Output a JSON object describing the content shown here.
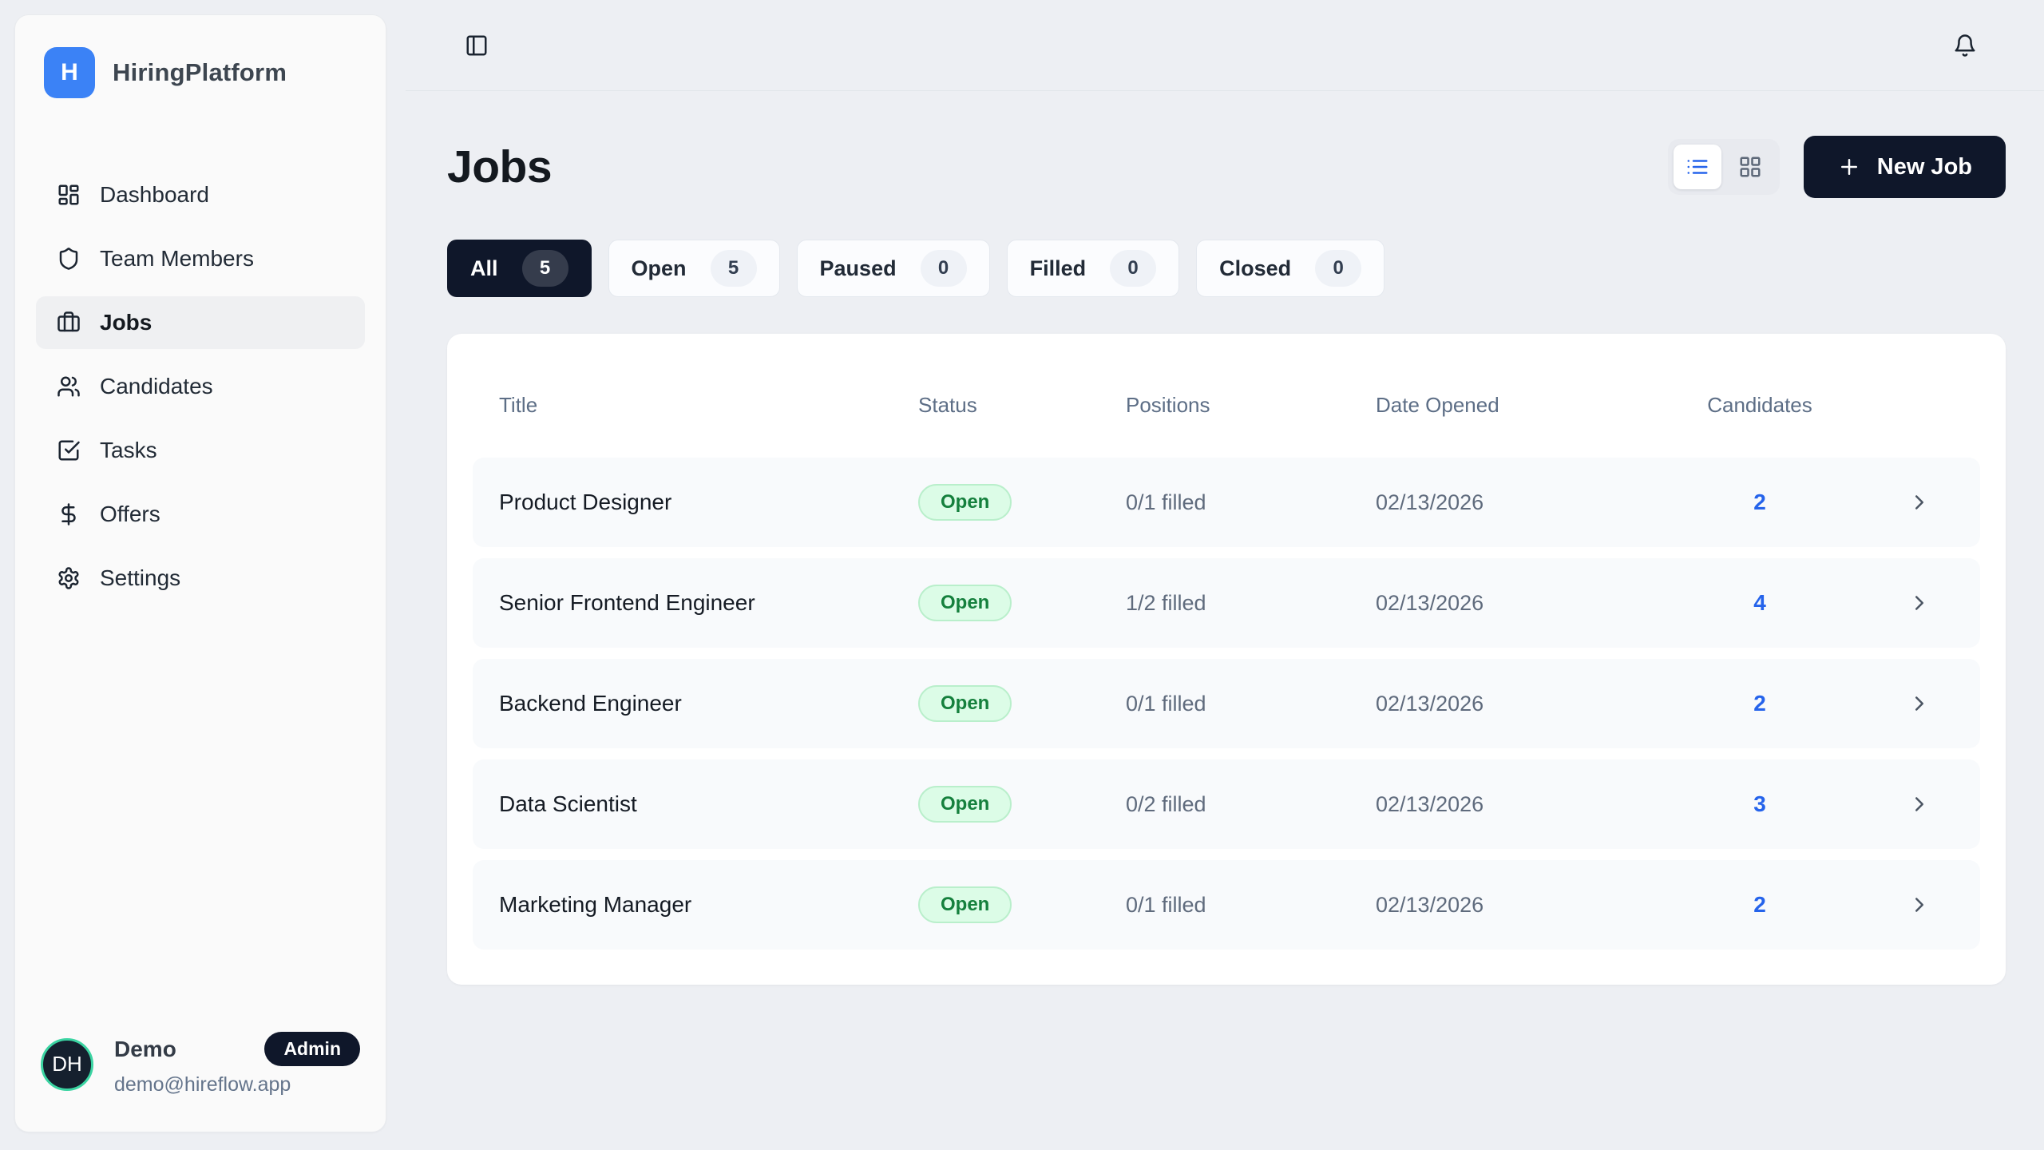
{
  "brand": {
    "initial": "H",
    "name": "HiringPlatform"
  },
  "sidebar": {
    "items": [
      {
        "label": "Dashboard",
        "icon": "layout-dashboard",
        "active": false
      },
      {
        "label": "Team Members",
        "icon": "shield",
        "active": false
      },
      {
        "label": "Jobs",
        "icon": "briefcase",
        "active": true
      },
      {
        "label": "Candidates",
        "icon": "users",
        "active": false
      },
      {
        "label": "Tasks",
        "icon": "check-square",
        "active": false
      },
      {
        "label": "Offers",
        "icon": "dollar-sign",
        "active": false
      },
      {
        "label": "Settings",
        "icon": "settings",
        "active": false
      }
    ]
  },
  "user": {
    "initials": "DH",
    "name": "Demo",
    "role": "Admin",
    "email": "demo@hireflow.app"
  },
  "page": {
    "title": "Jobs"
  },
  "actions": {
    "new_job_label": "New Job"
  },
  "filters": [
    {
      "label": "All",
      "count": "5",
      "active": true
    },
    {
      "label": "Open",
      "count": "5",
      "active": false
    },
    {
      "label": "Paused",
      "count": "0",
      "active": false
    },
    {
      "label": "Filled",
      "count": "0",
      "active": false
    },
    {
      "label": "Closed",
      "count": "0",
      "active": false
    }
  ],
  "table": {
    "columns": [
      "Title",
      "Status",
      "Positions",
      "Date Opened",
      "Candidates"
    ],
    "rows": [
      {
        "title": "Product Designer",
        "status": "Open",
        "positions": "0/1 filled",
        "date_opened": "02/13/2026",
        "candidates": "2"
      },
      {
        "title": "Senior Frontend Engineer",
        "status": "Open",
        "positions": "1/2 filled",
        "date_opened": "02/13/2026",
        "candidates": "4"
      },
      {
        "title": "Backend Engineer",
        "status": "Open",
        "positions": "0/1 filled",
        "date_opened": "02/13/2026",
        "candidates": "2"
      },
      {
        "title": "Data Scientist",
        "status": "Open",
        "positions": "0/2 filled",
        "date_opened": "02/13/2026",
        "candidates": "3"
      },
      {
        "title": "Marketing Manager",
        "status": "Open",
        "positions": "0/1 filled",
        "date_opened": "02/13/2026",
        "candidates": "2"
      }
    ]
  },
  "colors": {
    "accent": "#3b82f6",
    "dark": "#0f172a",
    "status-open-bg": "#dcfce7",
    "status-open-border": "#b9efcb",
    "status-open-text": "#15803d",
    "candidates-link": "#2563eb",
    "avatar-ring": "#3bd4a2"
  }
}
